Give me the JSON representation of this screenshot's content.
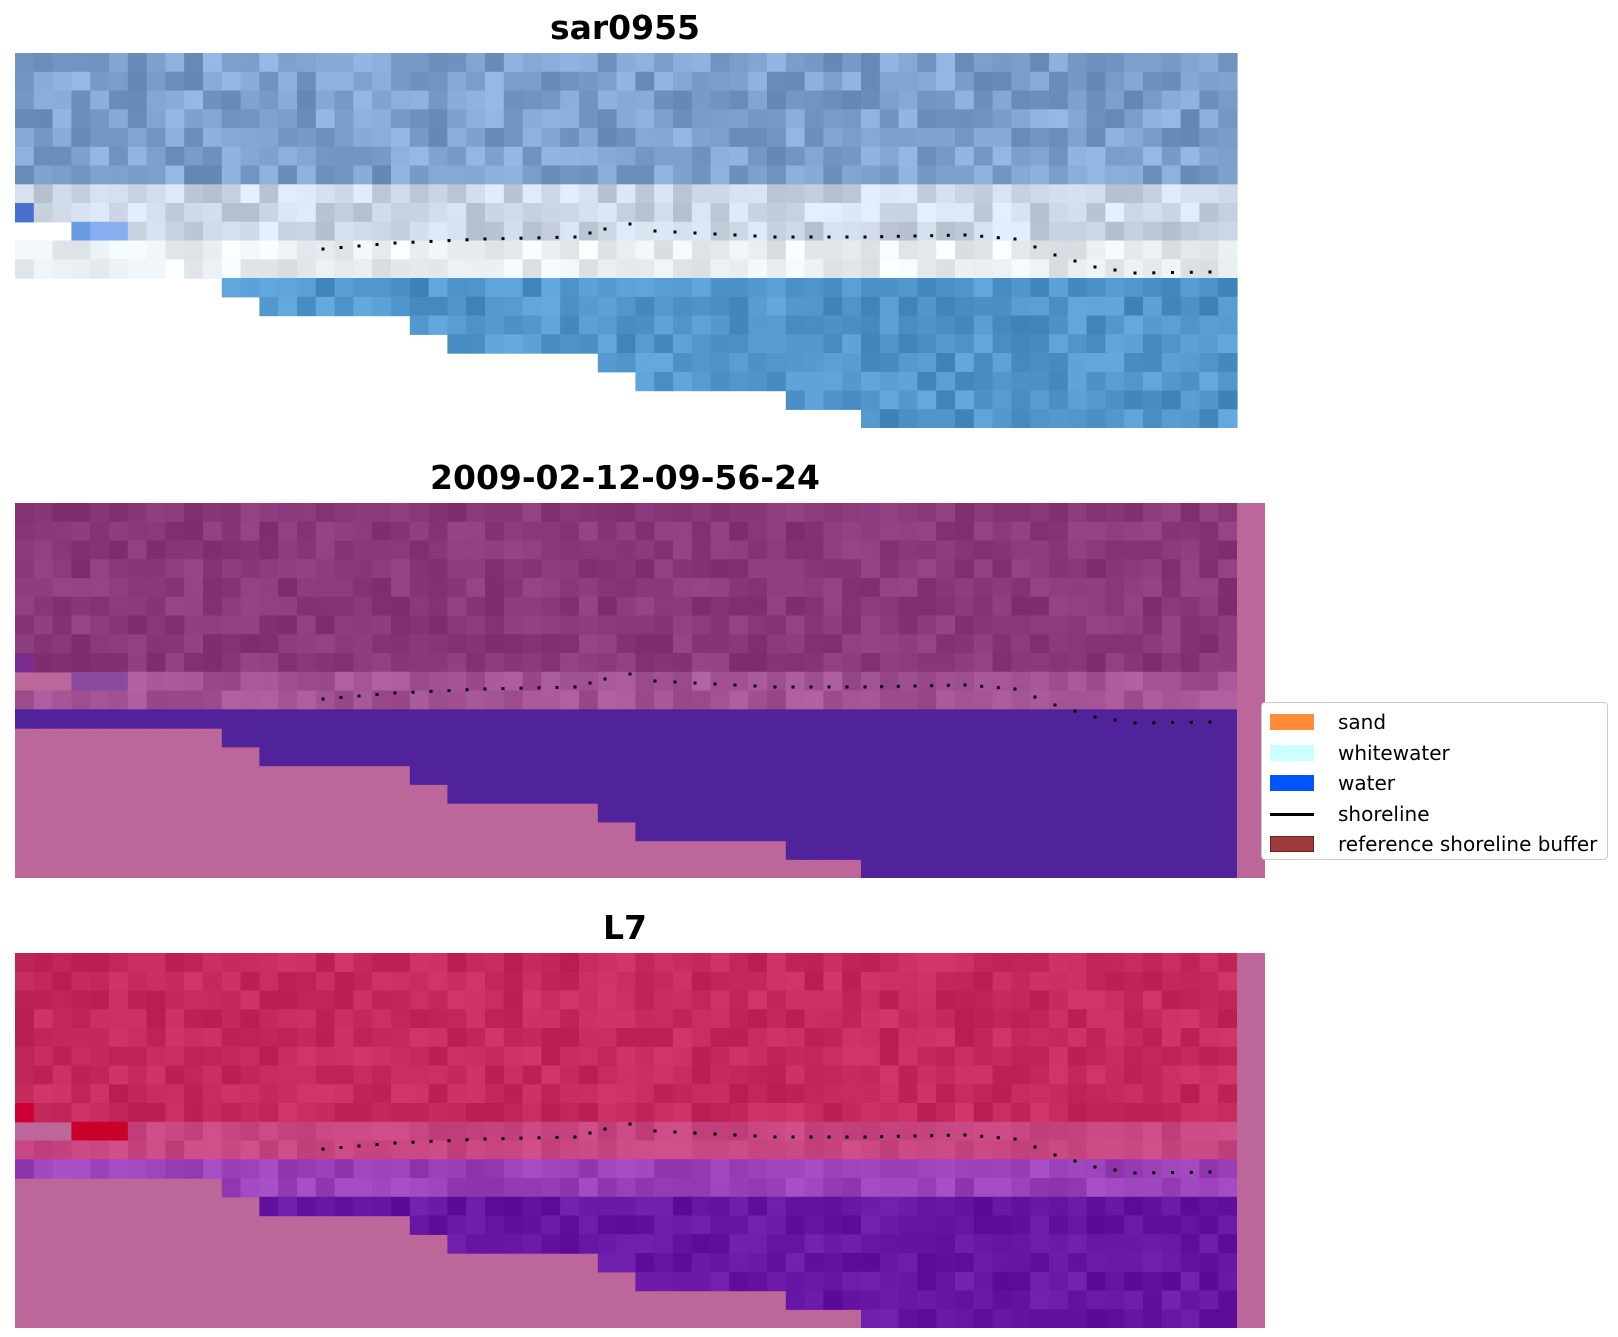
{
  "panels": [
    {
      "title": "sar0955",
      "style": "rgb"
    },
    {
      "title": "2009-02-12-09-56-24",
      "style": "classified"
    },
    {
      "title": "L7",
      "style": "mndwi"
    }
  ],
  "legend": {
    "items": [
      {
        "label": "sand",
        "kind": "patch",
        "color": "#ff8c3a",
        "edge": "#ff8c3a"
      },
      {
        "label": "whitewater",
        "kind": "patch",
        "color": "#ccffff",
        "edge": "#ccffff"
      },
      {
        "label": "water",
        "kind": "patch",
        "color": "#0055ff",
        "edge": "#0055ff"
      },
      {
        "label": "shoreline",
        "kind": "line",
        "color": "#000000",
        "edge": "#000000"
      },
      {
        "label": "reference shoreline buffer",
        "kind": "patch",
        "color": "#9e3a3a",
        "edge": "#6b1f1f"
      }
    ]
  },
  "colors": {
    "nodata": "#bc6699",
    "water_class": "#51239a",
    "shoreline": "#000000"
  }
}
